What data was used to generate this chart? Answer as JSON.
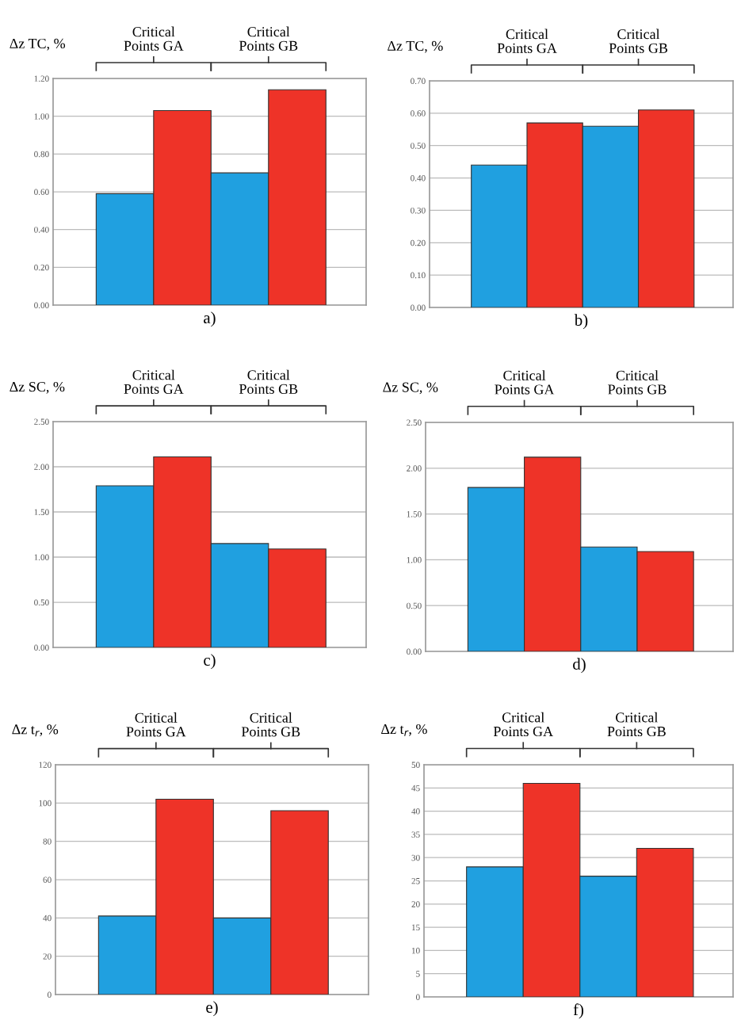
{
  "chart_data": [
    {
      "type": "bar",
      "ylabel": "Δz TC, %",
      "xlabel": "a)",
      "annotations": [
        "Critical\nPoints GA",
        "Critical\nPoints GB"
      ],
      "categories": [
        null,
        null,
        null,
        null
      ],
      "values": [
        0.59,
        1.03,
        0.7,
        1.14
      ],
      "colors": [
        "#20a0e0",
        "#ee3328",
        "#20a0e0",
        "#ee3328"
      ],
      "ylim": [
        0,
        1.2
      ],
      "yticks": [
        {
          "value": 0,
          "label": "0.00"
        },
        {
          "value": 0.2,
          "label": "0.20"
        },
        {
          "value": 0.4,
          "label": "0.40"
        },
        {
          "value": 0.6,
          "label": "0.60"
        },
        {
          "value": 0.8,
          "label": "0.80"
        },
        {
          "value": 1.0,
          "label": "1.00"
        },
        {
          "value": 1.2,
          "label": "1.20"
        }
      ],
      "grid": "y",
      "tick_labels": "y"
    },
    {
      "type": "bar",
      "ylabel": "Δz TC, %",
      "xlabel": "b)",
      "annotations": [
        "Critical\nPoints GA",
        "Critical\nPoints GB"
      ],
      "categories": [
        null,
        null,
        null,
        null
      ],
      "values": [
        0.44,
        0.57,
        0.56,
        0.61
      ],
      "colors": [
        "#20a0e0",
        "#ee3328",
        "#20a0e0",
        "#ee3328"
      ],
      "ylim": [
        0,
        0.7
      ],
      "yticks": [
        {
          "value": 0,
          "label": "0.00"
        },
        {
          "value": 0.1,
          "label": "0.10"
        },
        {
          "value": 0.2,
          "label": "0.20"
        },
        {
          "value": 0.3,
          "label": "0.30"
        },
        {
          "value": 0.4,
          "label": "0.40"
        },
        {
          "value": 0.5,
          "label": "0.50"
        },
        {
          "value": 0.6,
          "label": "0.60"
        },
        {
          "value": 0.7,
          "label": "0.70"
        }
      ],
      "grid": "y",
      "tick_labels": "y"
    },
    {
      "type": "bar",
      "ylabel": "Δz SC, %",
      "xlabel": "c)",
      "annotations": [
        "Critical\nPoints GA",
        "Critical\nPoints GB"
      ],
      "categories": [
        null,
        null,
        null,
        null
      ],
      "values": [
        1.79,
        2.11,
        1.15,
        1.09
      ],
      "colors": [
        "#20a0e0",
        "#ee3328",
        "#20a0e0",
        "#ee3328"
      ],
      "ylim": [
        0,
        2.5
      ],
      "yticks": [
        {
          "value": 0,
          "label": "0.00"
        },
        {
          "value": 0.5,
          "label": "0.50"
        },
        {
          "value": 1.0,
          "label": "1.00"
        },
        {
          "value": 1.5,
          "label": "1.50"
        },
        {
          "value": 2.0,
          "label": "2.00"
        },
        {
          "value": 2.5,
          "label": "2.50"
        }
      ],
      "grid": "y",
      "tick_labels": "y"
    },
    {
      "type": "bar",
      "ylabel": "Δz SC, %",
      "xlabel": "d)",
      "annotations": [
        "Critical\nPoints GA",
        "Critical\nPoints GB"
      ],
      "categories": [
        null,
        null,
        null,
        null
      ],
      "values": [
        1.79,
        2.12,
        1.14,
        1.09
      ],
      "colors": [
        "#20a0e0",
        "#ee3328",
        "#20a0e0",
        "#ee3328"
      ],
      "ylim": [
        0,
        2.5
      ],
      "yticks": [
        {
          "value": 0,
          "label": "0.00"
        },
        {
          "value": 0.5,
          "label": "0.50"
        },
        {
          "value": 1.0,
          "label": "1.00"
        },
        {
          "value": 1.5,
          "label": "1.50"
        },
        {
          "value": 2.0,
          "label": "2.00"
        },
        {
          "value": 2.5,
          "label": "2.50"
        }
      ],
      "grid": "y",
      "tick_labels": "y"
    },
    {
      "type": "bar",
      "ylabel": "Δz t$_{r}$, %",
      "xlabel": "e)",
      "annotations": [
        "Critical\nPoints GA",
        "Critical\nPoints GB"
      ],
      "categories": [
        null,
        null,
        null,
        null
      ],
      "values": [
        41,
        102,
        40,
        96
      ],
      "colors": [
        "#20a0e0",
        "#ee3328",
        "#20a0e0",
        "#ee3328"
      ],
      "ylim": [
        0,
        120
      ],
      "yticks": [
        0,
        20,
        40,
        60,
        80,
        100,
        120
      ],
      "grid": "y",
      "tick_labels": "y"
    },
    {
      "type": "bar",
      "ylabel": "Δz t$_{r}$, %",
      "xlabel": "f)",
      "annotations": [
        "Critical\nPoints GA",
        "Critical\nPoints GB"
      ],
      "categories": [
        null,
        null,
        null,
        null
      ],
      "values": [
        28,
        46,
        26,
        32
      ],
      "colors": [
        "#20a0e0",
        "#ee3328",
        "#20a0e0",
        "#ee3328"
      ],
      "ylim": [
        0,
        50
      ],
      "yticks": [
        0,
        5,
        10,
        15,
        20,
        25,
        30,
        35,
        40,
        45,
        50
      ],
      "grid": "y",
      "tick_labels": "y"
    }
  ]
}
